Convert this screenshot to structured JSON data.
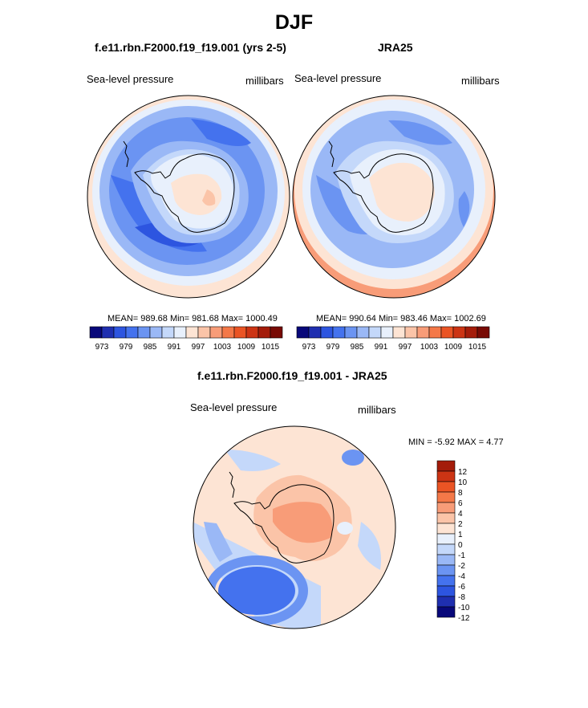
{
  "title": "DJF",
  "panels": [
    {
      "subtitle": "f.e11.rbn.F2000.f19_f19.001 (yrs 2-5)",
      "left_label": "Sea-level pressure",
      "right_label": "millibars",
      "stats": "MEAN= 989.68  Min= 981.68  Max= 1000.49"
    },
    {
      "subtitle": "JRA25",
      "left_label": "Sea-level pressure",
      "right_label": "millibars",
      "stats": "MEAN= 990.64  Min= 983.46  Max= 1002.69"
    },
    {
      "subtitle": "f.e11.rbn.F2000.f19_f19.001 - JRA25",
      "left_label": "Sea-level pressure",
      "right_label": "millibars",
      "stats": "MIN =  -5.92 MAX =   4.77"
    }
  ],
  "colorbar_abs": {
    "colors": [
      "#08087a",
      "#1f2fb0",
      "#2d55e0",
      "#4472ee",
      "#6b94f2",
      "#9ab8f6",
      "#c4d8fa",
      "#e8f0fc",
      "#fde4d4",
      "#fbc4a8",
      "#f89c78",
      "#f47848",
      "#ea5424",
      "#cc3414",
      "#a41c0a",
      "#780a04"
    ],
    "labels": [
      "973",
      "979",
      "985",
      "991",
      "997",
      "1003",
      "1009",
      "1015"
    ]
  },
  "colorbar_diff": {
    "colors": [
      "#08087a",
      "#1f2fb0",
      "#2d55e0",
      "#4472ee",
      "#6b94f2",
      "#9ab8f6",
      "#c4d8fa",
      "#e8f0fc",
      "#fde4d4",
      "#fbc4a8",
      "#f89c78",
      "#f47848",
      "#ea5424",
      "#cc3414",
      "#a41c0a"
    ],
    "labels": [
      "12",
      "10",
      "8",
      "6",
      "4",
      "2",
      "1",
      "0",
      "-1",
      "-2",
      "-4",
      "-6",
      "-8",
      "-10",
      "-12"
    ]
  }
}
